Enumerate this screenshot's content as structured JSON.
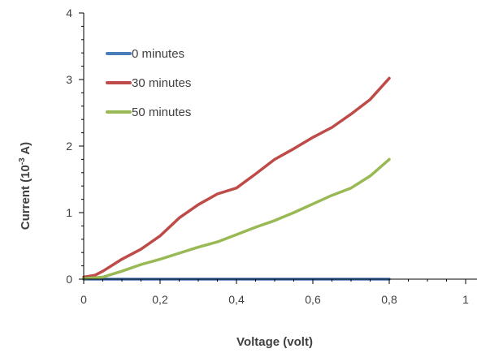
{
  "chart_data": {
    "type": "line",
    "xlabel": "Voltage (volt)",
    "ylabel_main": "Current (10",
    "ylabel_sup": "-3",
    "ylabel_tail": " A)",
    "xlim": [
      0,
      1
    ],
    "ylim": [
      0,
      4
    ],
    "x_ticks": [
      0,
      0.2,
      0.4,
      0.6,
      0.8,
      1
    ],
    "x_tick_labels": [
      "0",
      "0,2",
      "0,4",
      "0,6",
      "0,8",
      "1"
    ],
    "y_ticks": [
      0,
      1,
      2,
      3,
      4
    ],
    "y_tick_labels": [
      "0",
      "1",
      "2",
      "3",
      "4"
    ],
    "grid": false,
    "legend_position": "top-left",
    "series": [
      {
        "name": "0 minutes",
        "color": "#4a7ebb",
        "x": [
          0,
          0.05,
          0.1,
          0.15,
          0.2,
          0.25,
          0.3,
          0.35,
          0.4,
          0.45,
          0.5,
          0.55,
          0.6,
          0.65,
          0.7,
          0.75,
          0.8
        ],
        "y": [
          0,
          0,
          0,
          0,
          0,
          0,
          0,
          0,
          0,
          0,
          0,
          0,
          0,
          0,
          0,
          0,
          0
        ]
      },
      {
        "name": "30 minutes",
        "color": "#be4b48",
        "x": [
          0,
          0.03,
          0.05,
          0.1,
          0.15,
          0.2,
          0.25,
          0.3,
          0.35,
          0.4,
          0.45,
          0.5,
          0.55,
          0.6,
          0.65,
          0.7,
          0.75,
          0.8
        ],
        "y": [
          0.03,
          0.06,
          0.12,
          0.3,
          0.45,
          0.65,
          0.92,
          1.12,
          1.28,
          1.37,
          1.58,
          1.8,
          1.96,
          2.13,
          2.28,
          2.48,
          2.7,
          3.02
        ]
      },
      {
        "name": "50 minutes",
        "color": "#98b954",
        "x": [
          0,
          0.05,
          0.1,
          0.15,
          0.2,
          0.25,
          0.3,
          0.35,
          0.4,
          0.45,
          0.5,
          0.55,
          0.6,
          0.65,
          0.7,
          0.75,
          0.8
        ],
        "y": [
          0.01,
          0.03,
          0.12,
          0.22,
          0.3,
          0.39,
          0.48,
          0.56,
          0.67,
          0.78,
          0.88,
          1.0,
          1.13,
          1.26,
          1.37,
          1.55,
          1.8
        ]
      }
    ]
  }
}
